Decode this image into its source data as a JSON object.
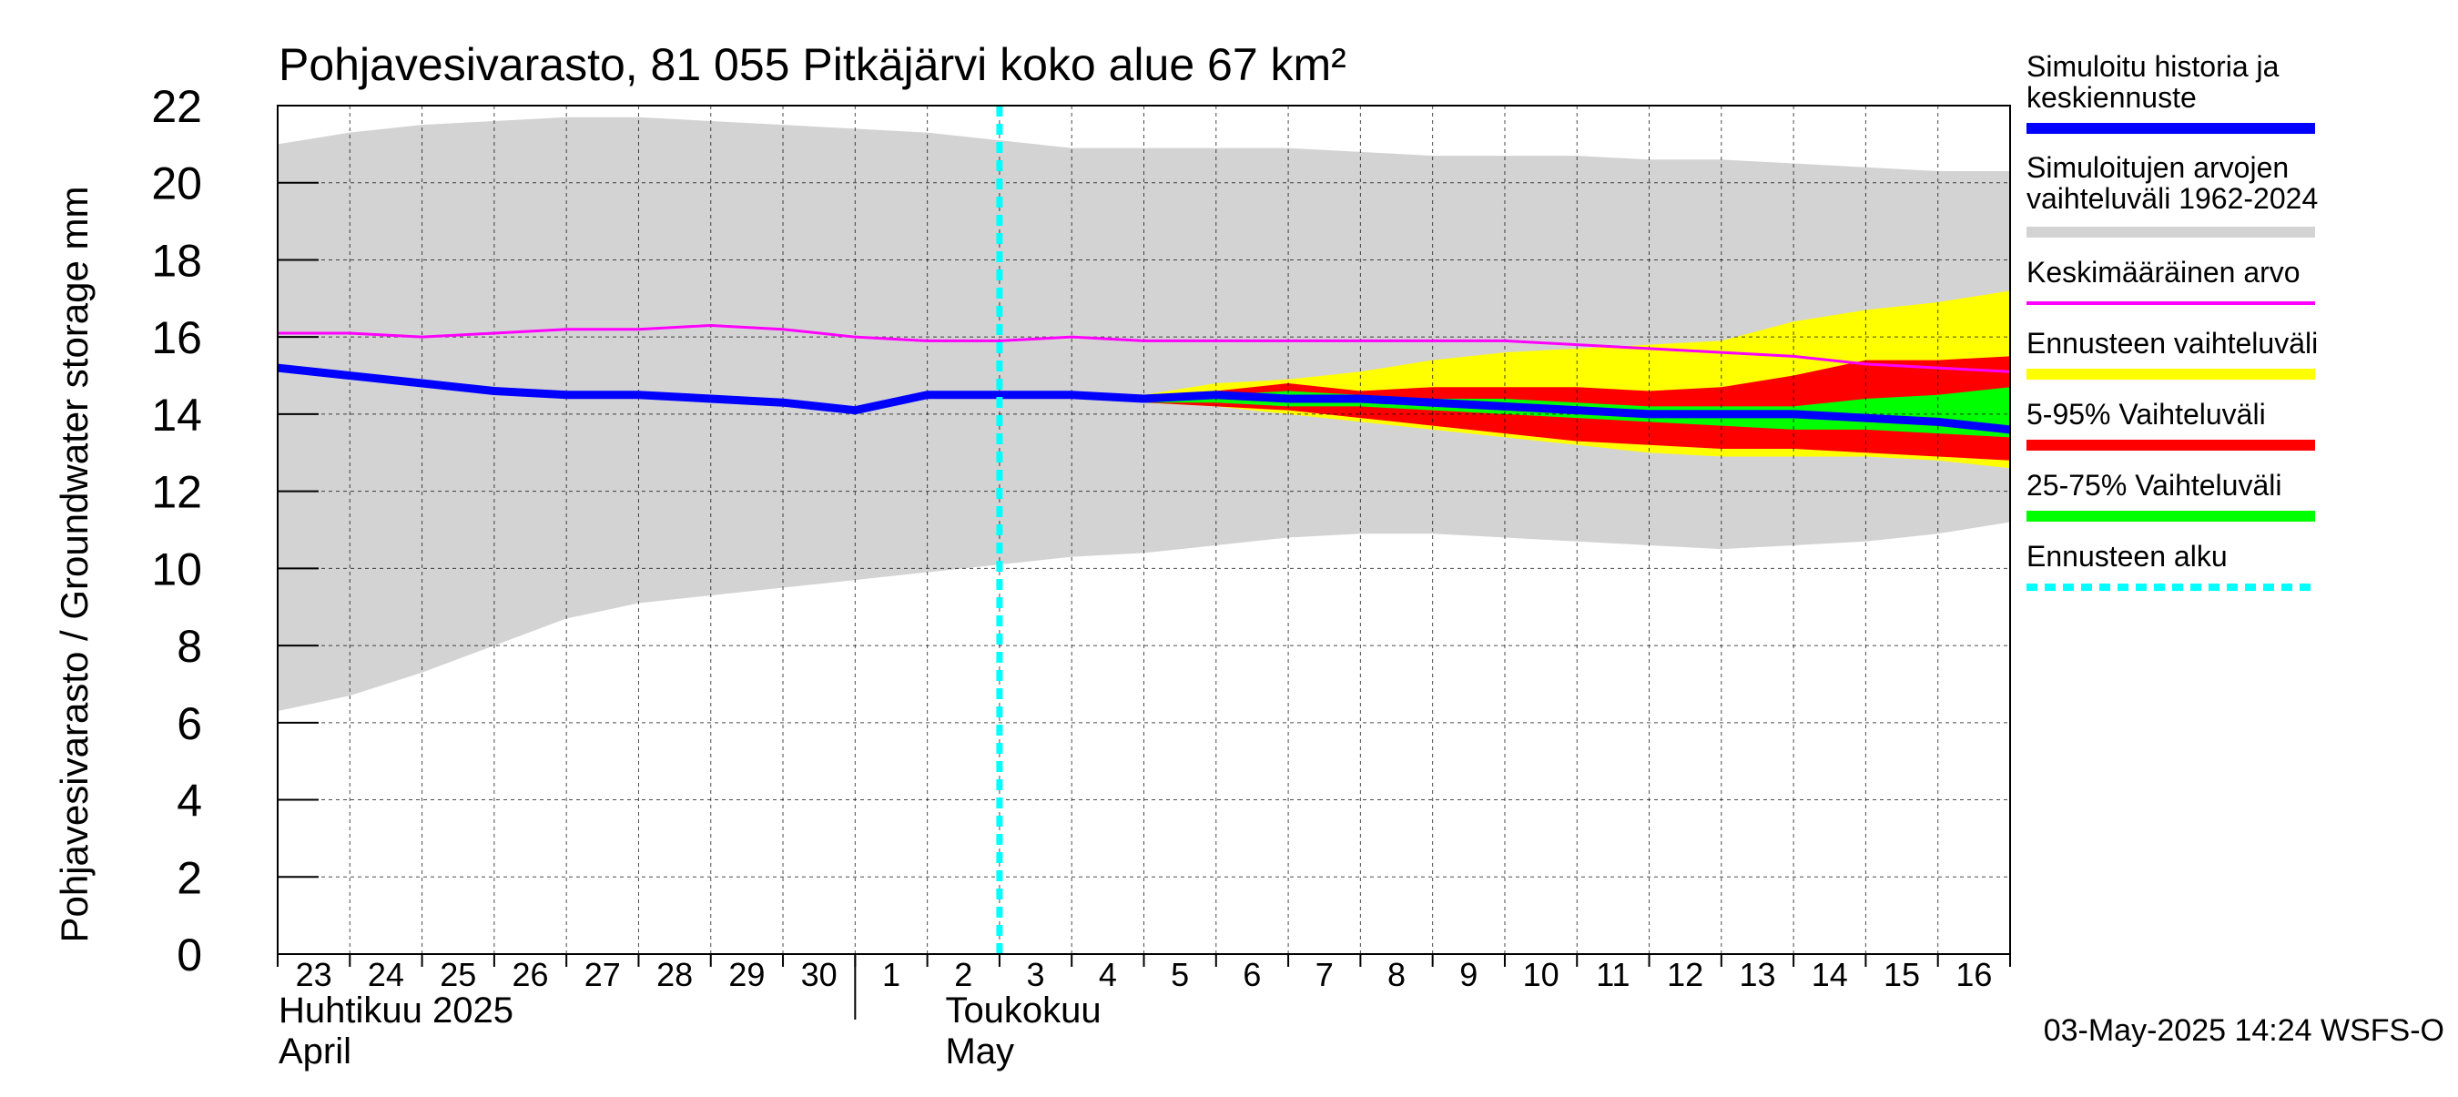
{
  "title": "Pohjavesivarasto, 81 055 Pitkäjärvi koko alue 67 km²",
  "ylabel": "Pohjavesivarasto / Groundwater storage   mm",
  "footer": "03-May-2025 14:24 WSFS-O",
  "month_labels": [
    {
      "fi": "Huhtikuu  2025",
      "en": "April"
    },
    {
      "fi": "Toukokuu",
      "en": "May"
    }
  ],
  "legend": [
    {
      "label": "Simuloitu historia ja keskiennuste",
      "color": "#0000ff",
      "style": "thick"
    },
    {
      "label": "Simuloitujen arvojen vaihteluväli 1962-2024",
      "color": "#d3d3d3",
      "style": "band"
    },
    {
      "label": "Keskimääräinen arvo",
      "color": "#ff00ff",
      "style": "thin"
    },
    {
      "label": "Ennusteen vaihteluväli",
      "color": "#ffff00",
      "style": "band"
    },
    {
      "label": "5-95% Vaihteluväli",
      "color": "#ff0000",
      "style": "band"
    },
    {
      "label": "25-75% Vaihteluväli",
      "color": "#00ff00",
      "style": "band"
    },
    {
      "label": "Ennusteen alku",
      "color": "#00ffff",
      "style": "dashed"
    }
  ],
  "chart_data": {
    "type": "area",
    "title": "Pohjavesivarasto, 81 055 Pitkäjärvi koko alue 67 km²",
    "ylabel": "Pohjavesivarasto / Groundwater storage   mm",
    "ylim": [
      0,
      22
    ],
    "yticks": [
      0,
      2,
      4,
      6,
      8,
      10,
      12,
      14,
      16,
      18,
      20,
      22
    ],
    "xlim": [
      0,
      24
    ],
    "x_tick_labels": [
      "23",
      "24",
      "25",
      "26",
      "27",
      "28",
      "29",
      "30",
      "1",
      "2",
      "3",
      "4",
      "5",
      "6",
      "7",
      "8",
      "9",
      "10",
      "11",
      "12",
      "13",
      "14",
      "15",
      "16"
    ],
    "grid": true,
    "legend_position": "right",
    "forecast_start_x": 10,
    "series": [
      {
        "name": "Simuloitujen arvojen vaihteluväli 1962-2024",
        "kind": "band",
        "color": "#d3d3d3",
        "x": [
          0,
          1,
          2,
          3,
          4,
          5,
          6,
          7,
          8,
          9,
          10,
          11,
          12,
          13,
          14,
          15,
          16,
          17,
          18,
          19,
          20,
          21,
          22,
          23,
          24
        ],
        "upper": [
          21.0,
          21.3,
          21.5,
          21.6,
          21.7,
          21.7,
          21.6,
          21.5,
          21.4,
          21.3,
          21.1,
          20.9,
          20.9,
          20.9,
          20.9,
          20.8,
          20.7,
          20.7,
          20.7,
          20.6,
          20.6,
          20.5,
          20.4,
          20.3,
          20.3
        ],
        "lower": [
          6.3,
          6.7,
          7.3,
          8.0,
          8.7,
          9.1,
          9.3,
          9.5,
          9.7,
          9.9,
          10.1,
          10.3,
          10.4,
          10.6,
          10.8,
          10.9,
          10.9,
          10.8,
          10.7,
          10.6,
          10.5,
          10.6,
          10.7,
          10.9,
          11.2
        ]
      },
      {
        "name": "Ennusteen vaihteluväli",
        "kind": "band",
        "color": "#ffff00",
        "x": [
          10,
          11,
          12,
          13,
          14,
          15,
          16,
          17,
          18,
          19,
          20,
          21,
          22,
          23,
          24
        ],
        "upper": [
          14.5,
          14.5,
          14.5,
          14.8,
          14.9,
          15.1,
          15.4,
          15.6,
          15.7,
          15.8,
          15.9,
          16.4,
          16.7,
          16.9,
          17.2
        ],
        "lower": [
          14.5,
          14.4,
          14.3,
          14.2,
          14.0,
          13.8,
          13.6,
          13.4,
          13.2,
          13.0,
          12.9,
          12.9,
          12.9,
          12.8,
          12.6
        ]
      },
      {
        "name": "5-95% Vaihteluväli",
        "kind": "band",
        "color": "#ff0000",
        "x": [
          10,
          11,
          12,
          13,
          14,
          15,
          16,
          17,
          18,
          19,
          20,
          21,
          22,
          23,
          24
        ],
        "upper": [
          14.5,
          14.4,
          14.3,
          14.6,
          14.8,
          14.6,
          14.7,
          14.7,
          14.7,
          14.6,
          14.7,
          15.0,
          15.4,
          15.4,
          15.5
        ],
        "lower": [
          14.5,
          14.4,
          14.3,
          14.2,
          14.1,
          13.9,
          13.7,
          13.5,
          13.3,
          13.2,
          13.1,
          13.1,
          13.0,
          12.9,
          12.8
        ]
      },
      {
        "name": "25-75% Vaihteluväli",
        "kind": "band",
        "color": "#00ff00",
        "x": [
          10,
          11,
          12,
          13,
          14,
          15,
          16,
          17,
          18,
          19,
          20,
          21,
          22,
          23,
          24
        ],
        "upper": [
          14.5,
          14.4,
          14.3,
          14.5,
          14.6,
          14.5,
          14.4,
          14.4,
          14.3,
          14.2,
          14.2,
          14.2,
          14.4,
          14.5,
          14.7
        ],
        "lower": [
          14.5,
          14.4,
          14.3,
          14.3,
          14.2,
          14.2,
          14.1,
          14.0,
          13.9,
          13.8,
          13.7,
          13.6,
          13.6,
          13.5,
          13.4
        ]
      },
      {
        "name": "Keskimääräinen arvo",
        "kind": "line",
        "color": "#ff00ff",
        "width": 3,
        "x": [
          0,
          1,
          2,
          3,
          4,
          5,
          6,
          7,
          8,
          9,
          10,
          11,
          12,
          13,
          14,
          15,
          16,
          17,
          18,
          19,
          20,
          21,
          22,
          23,
          24
        ],
        "y": [
          16.1,
          16.1,
          16.0,
          16.1,
          16.2,
          16.2,
          16.3,
          16.2,
          16.0,
          15.9,
          15.9,
          16.0,
          15.9,
          15.9,
          15.9,
          15.9,
          15.9,
          15.9,
          15.8,
          15.7,
          15.6,
          15.5,
          15.3,
          15.2,
          15.1
        ]
      },
      {
        "name": "Simuloitu historia ja keskiennuste",
        "kind": "line",
        "color": "#0000ff",
        "width": 9,
        "x": [
          0,
          1,
          2,
          3,
          4,
          5,
          6,
          7,
          8,
          9,
          10,
          11,
          12,
          13,
          14,
          15,
          16,
          17,
          18,
          19,
          20,
          21,
          22,
          23,
          24
        ],
        "y": [
          15.2,
          15.0,
          14.8,
          14.6,
          14.5,
          14.5,
          14.4,
          14.3,
          14.1,
          14.5,
          14.5,
          14.5,
          14.4,
          14.5,
          14.4,
          14.4,
          14.3,
          14.2,
          14.1,
          14.0,
          14.0,
          14.0,
          13.9,
          13.8,
          13.6
        ]
      }
    ]
  }
}
